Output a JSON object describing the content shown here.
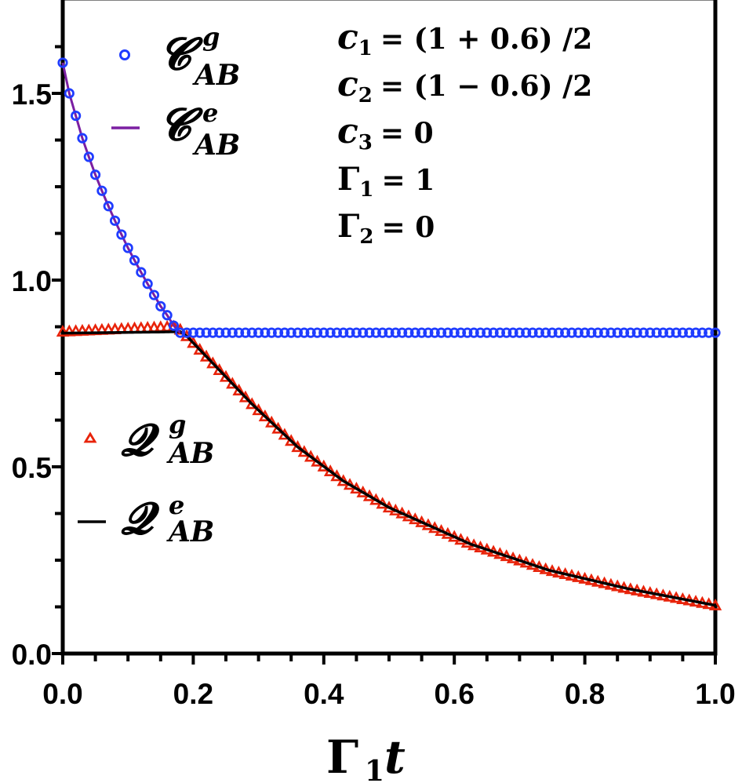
{
  "chart_data": {
    "type": "line",
    "title": "",
    "xlabel": "Γ₁t",
    "ylabel": "",
    "xlim": [
      0.0,
      1.0
    ],
    "ylim": [
      0.0,
      1.72
    ],
    "x_ticks": [
      "0.0",
      "0.2",
      "0.4",
      "0.6",
      "0.8",
      "1.0"
    ],
    "y_ticks": [
      "0.0",
      "0.5",
      "1.0",
      "1.5"
    ],
    "grid": false,
    "legend_position": "upper-left and middle-left",
    "annotations": [
      "c₁ = (1 + 0.6) /2",
      "c₂ = (1 − 0.6) /2",
      "c₃ = 0",
      "Γ₁ = 1",
      "Γ₂ = 0"
    ],
    "series": [
      {
        "name": "C^g_AB",
        "style": "hollow-circle-markers",
        "color": "#1f3cff",
        "x": [
          0.0,
          0.01,
          0.02,
          0.03,
          0.04,
          0.05,
          0.06,
          0.07,
          0.08,
          0.09,
          0.1,
          0.11,
          0.12,
          0.13,
          0.14,
          0.15,
          0.16,
          0.17,
          0.18,
          1.0
        ],
        "values": [
          1.582,
          1.5,
          1.44,
          1.38,
          1.33,
          1.282,
          1.239,
          1.198,
          1.159,
          1.122,
          1.086,
          1.053,
          1.021,
          0.99,
          0.96,
          0.93,
          0.906,
          0.878,
          0.859,
          0.859
        ]
      },
      {
        "name": "C^e_AB",
        "style": "line",
        "color": "#7b1fa2",
        "x": [
          0.0,
          0.01,
          0.02,
          0.03,
          0.04,
          0.05,
          0.06,
          0.07,
          0.08,
          0.09,
          0.1,
          0.11,
          0.12,
          0.13,
          0.14,
          0.15,
          0.16,
          0.17,
          0.18
        ],
        "values": [
          1.582,
          1.5,
          1.44,
          1.38,
          1.33,
          1.282,
          1.239,
          1.198,
          1.159,
          1.122,
          1.086,
          1.053,
          1.021,
          0.99,
          0.96,
          0.93,
          0.906,
          0.878,
          0.859
        ]
      },
      {
        "name": "Q^g_AB",
        "style": "hollow-triangle-markers",
        "color": "#e8230a",
        "x": [
          0.0,
          0.05,
          0.1,
          0.15,
          0.175,
          0.19,
          0.24,
          0.29,
          0.36,
          0.43,
          0.5,
          0.625,
          0.745,
          0.865,
          1.0
        ],
        "values": [
          0.862,
          0.866,
          0.87,
          0.874,
          0.876,
          0.85,
          0.759,
          0.668,
          0.553,
          0.462,
          0.391,
          0.293,
          0.223,
          0.174,
          0.129
        ]
      },
      {
        "name": "Q^e_AB",
        "style": "line",
        "color": "#000000",
        "x": [
          0.0,
          0.05,
          0.1,
          0.15,
          0.18,
          0.19,
          0.24,
          0.29,
          0.36,
          0.43,
          0.5,
          0.625,
          0.745,
          0.865,
          1.0
        ],
        "values": [
          0.858,
          0.859,
          0.86,
          0.861,
          0.862,
          0.85,
          0.759,
          0.668,
          0.553,
          0.462,
          0.391,
          0.293,
          0.223,
          0.174,
          0.129
        ]
      }
    ]
  },
  "legend": {
    "cg": {
      "main": "𝓒",
      "sup": "g",
      "sub": "AB"
    },
    "ce": {
      "main": "𝓒",
      "sup": "e",
      "sub": "AB"
    },
    "qg": {
      "main": "𝓠",
      "sup": "g",
      "sub": "AB"
    },
    "qe": {
      "main": "𝓠",
      "sup": "e",
      "sub": "AB"
    }
  },
  "params": [
    {
      "sym": "c",
      "sub": "1",
      "rhs": "= (1 + 0.6) /2"
    },
    {
      "sym": "c",
      "sub": "2",
      "rhs": "= (1 − 0.6) /2"
    },
    {
      "sym": "c",
      "sub": "3",
      "rhs": "= 0"
    },
    {
      "sym": "Γ",
      "sub": "1",
      "rhs": "= 1"
    },
    {
      "sym": "Γ",
      "sub": "2",
      "rhs": "= 0"
    }
  ],
  "axis_label": {
    "x_main": "Γ",
    "x_sub": "1",
    "x_var": "t"
  }
}
